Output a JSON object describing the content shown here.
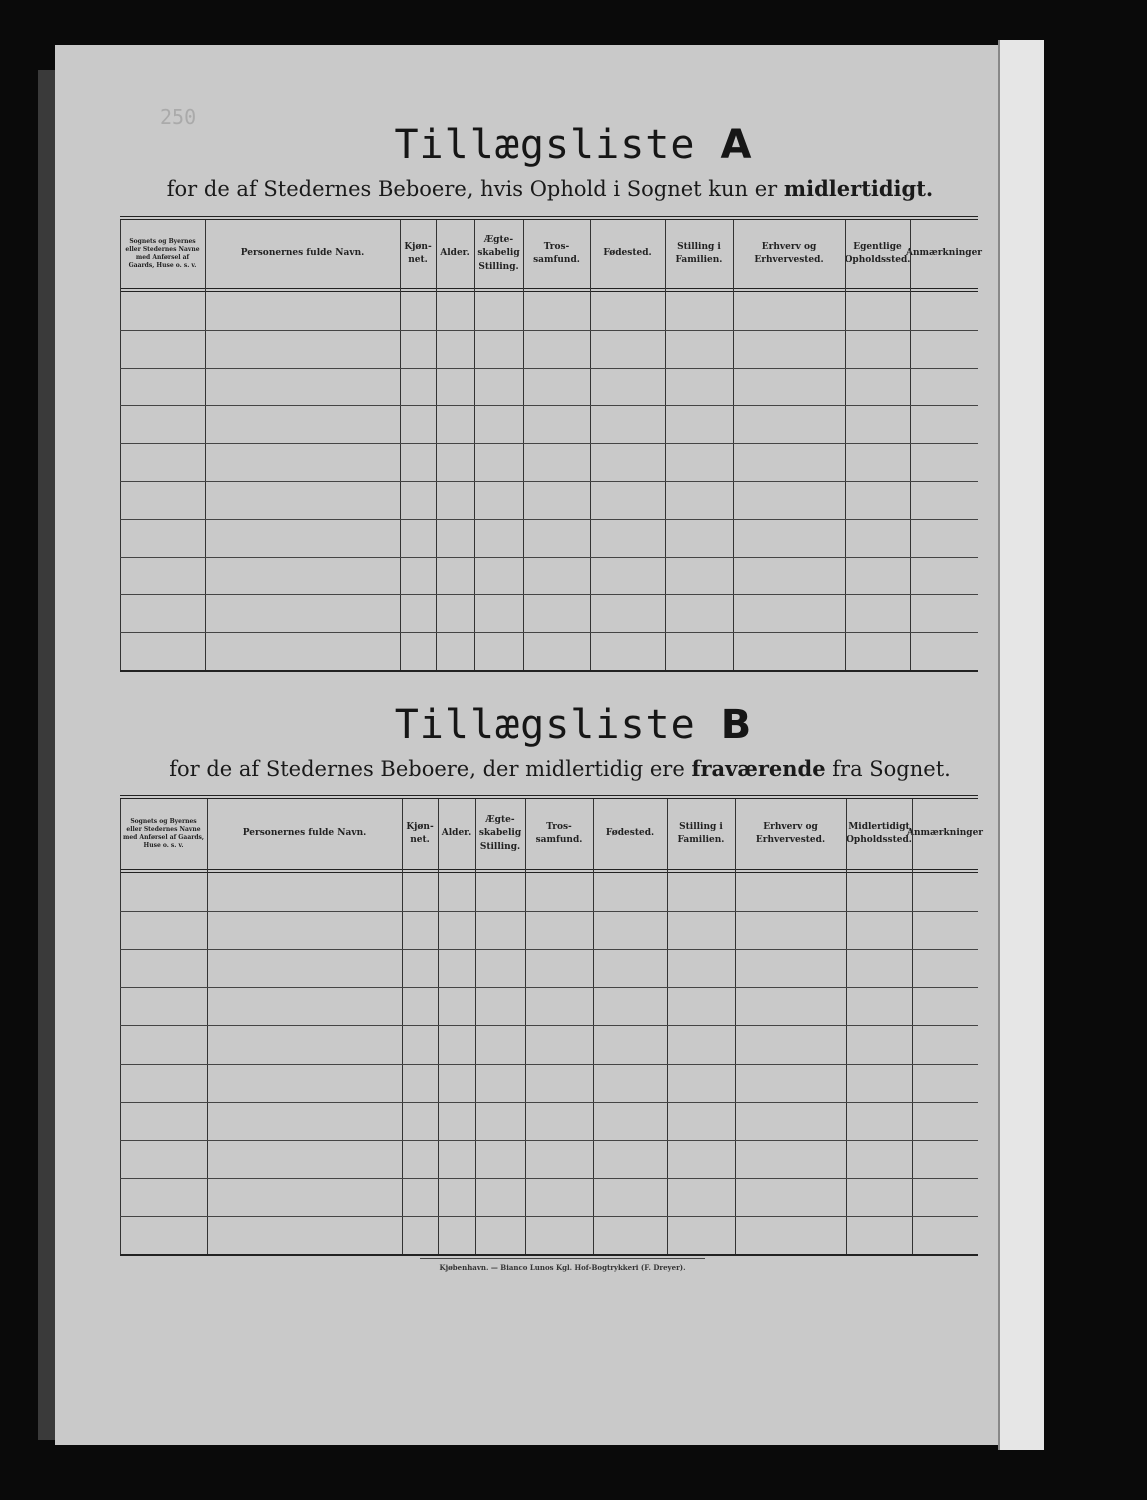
{
  "page_number": "250",
  "list_a": {
    "title": "Tillægsliste",
    "letter": "A",
    "subtitle_pre": "for de af Stedernes Beboere, hvis Ophold i Sognet kun er",
    "subtitle_bold": "midlertidigt.",
    "columns": [
      "Sognets og Byernes eller Stedernes Navne med Anførsel af Gaards, Huse o. s. v.",
      "Personernes fulde Navn.",
      "Kjøn-net.",
      "Alder.",
      "Ægte-skabelig Stilling.",
      "Tros-samfund.",
      "Fødested.",
      "Stilling i Familien.",
      "Erhverv og Erhvervested.",
      "Egentlige Opholdssted.",
      "Anmærkninger"
    ]
  },
  "list_b": {
    "title": "Tillægsliste",
    "letter": "B",
    "subtitle_pre": "for de af Stedernes Beboere, der midlertidig ere",
    "subtitle_bold": "fraværende",
    "subtitle_post": "fra Sognet.",
    "columns": [
      "Sognets og Byernes eller Stedernes Navne med Anførsel af Gaards, Huse o. s. v.",
      "Personernes fulde Navn.",
      "Kjøn-net.",
      "Alder.",
      "Ægte-skabelig Stilling.",
      "Tros-samfund.",
      "Fødested.",
      "Stilling i Familien.",
      "Erhverv og Erhvervested.",
      "Midlertidigt Opholdssted.",
      "Anmærkninger"
    ]
  },
  "imprint": "Kjøbenhavn. — Bianco Lunos Kgl. Hof-Bogtrykkeri (F. Dreyer)."
}
